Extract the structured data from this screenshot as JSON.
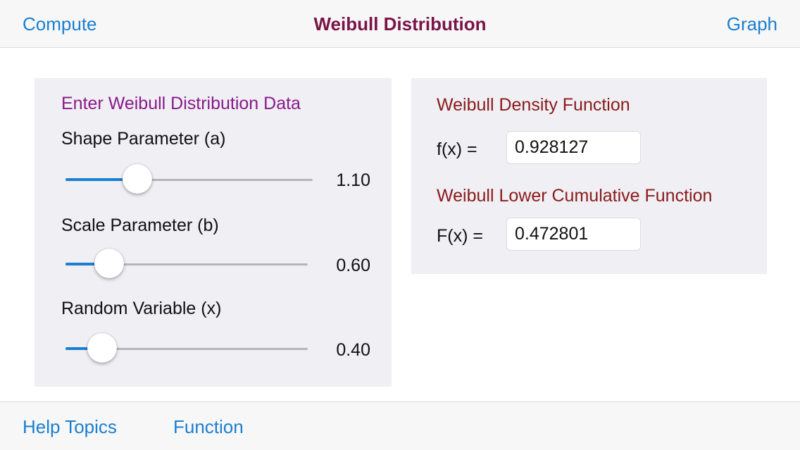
{
  "navbar": {
    "left_label": "Compute",
    "title": "Weibull Distribution",
    "right_label": "Graph"
  },
  "input_panel": {
    "heading": "Enter Weibull Distribution Data",
    "sliders": [
      {
        "label": "Shape Parameter (a)",
        "value_text": "1.10",
        "fraction": 0.29
      },
      {
        "label": "Scale Parameter (b)",
        "value_text": "0.60",
        "fraction": 0.18
      },
      {
        "label": "Random Variable (x)",
        "value_text": "0.40",
        "fraction": 0.15
      }
    ]
  },
  "output_panel": {
    "density_heading": "Weibull Density Function",
    "density_label": "f(x) =",
    "density_value": "0.928127",
    "cumulative_heading": "Weibull Lower Cumulative Function",
    "cumulative_label": "F(x) =",
    "cumulative_value": "0.472801"
  },
  "toolbar": {
    "help_label": "Help Topics",
    "function_label": "Function"
  },
  "colors": {
    "accent": "#1a7fd0",
    "title": "#7a1348",
    "input_heading": "#8a1a8a",
    "output_heading": "#8b1a1a",
    "panel_bg": "#efeff4"
  }
}
